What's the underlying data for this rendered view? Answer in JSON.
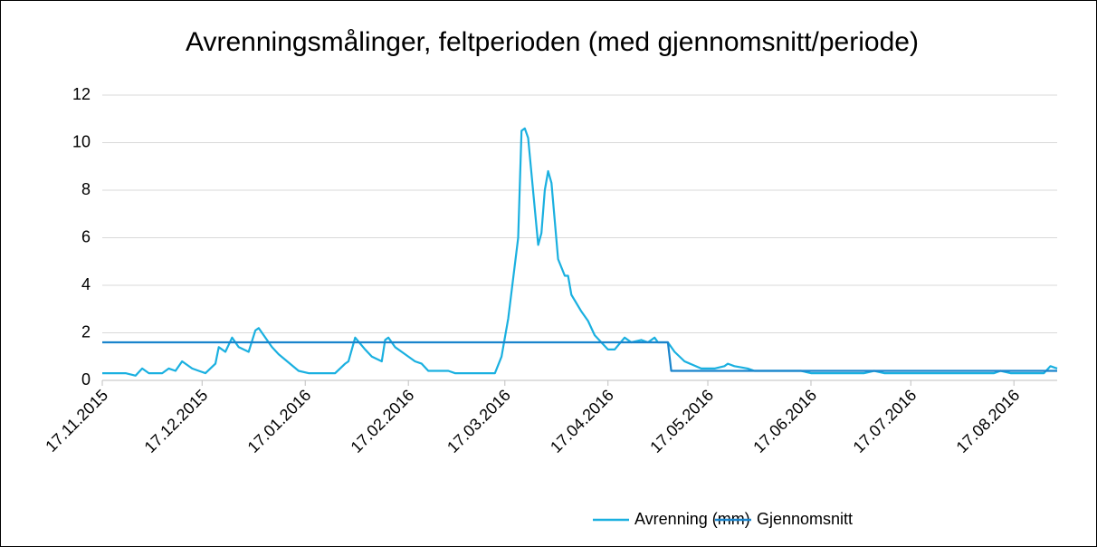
{
  "chart_data": {
    "type": "line",
    "title": "Avrenningsmålinger, feltperioden (med gjennomsnitt/periode)",
    "xlim": [
      "17.11.2015",
      "30.08.2016"
    ],
    "xticks": [
      "17.11.2015",
      "17.12.2015",
      "17.01.2016",
      "17.02.2016",
      "17.03.2016",
      "17.04.2016",
      "17.05.2016",
      "17.06.2016",
      "17.07.2016",
      "17.08.2016"
    ],
    "ylim": [
      0,
      12
    ],
    "yticks": [
      0,
      2,
      4,
      6,
      8,
      10,
      12
    ],
    "grid": true,
    "legend": "bottom",
    "series": [
      {
        "name": "Avrenning (mm)",
        "color": "#1ab0e0",
        "x": [
          "17.11.2015",
          "24.11.2015",
          "27.11.2015",
          "29.11.2015",
          "01.12.2015",
          "05.12.2015",
          "07.12.2015",
          "09.12.2015",
          "11.12.2015",
          "14.12.2015",
          "16.12.2015",
          "18.12.2015",
          "21.12.2015",
          "22.12.2015",
          "24.12.2015",
          "26.12.2015",
          "28.12.2015",
          "31.12.2015",
          "02.01.2016",
          "03.01.2016",
          "07.01.2016",
          "09.01.2016",
          "15.01.2016",
          "18.01.2016",
          "26.01.2016",
          "29.01.2016",
          "30.01.2016",
          "01.02.2016",
          "04.02.2016",
          "06.02.2016",
          "09.02.2016",
          "10.02.2016",
          "11.02.2016",
          "13.02.2016",
          "16.02.2016",
          "19.02.2016",
          "21.02.2016",
          "23.02.2016",
          "29.02.2016",
          "02.03.2016",
          "14.03.2016",
          "16.03.2016",
          "18.03.2016",
          "21.03.2016",
          "22.03.2016",
          "23.03.2016",
          "24.03.2016",
          "27.03.2016",
          "28.03.2016",
          "29.03.2016",
          "30.03.2016",
          "31.03.2016",
          "02.04.2016",
          "04.04.2016",
          "05.04.2016",
          "06.04.2016",
          "09.04.2016",
          "11.04.2016",
          "13.04.2016",
          "17.04.2016",
          "19.04.2016",
          "22.04.2016",
          "24.04.2016",
          "27.04.2016",
          "29.04.2016",
          "01.05.2016",
          "02.05.2016",
          "05.05.2016",
          "07.05.2016",
          "10.05.2016",
          "15.05.2016",
          "19.05.2016",
          "22.05.2016",
          "23.05.2016",
          "25.05.2016",
          "29.05.2016",
          "31.05.2016",
          "14.06.2016",
          "17.06.2016",
          "03.07.2016",
          "06.07.2016",
          "09.07.2016",
          "11.08.2016",
          "13.08.2016",
          "16.08.2016",
          "26.08.2016",
          "28.08.2016",
          "30.08.2016"
        ],
        "values": [
          0.3,
          0.3,
          0.2,
          0.5,
          0.3,
          0.3,
          0.5,
          0.4,
          0.8,
          0.5,
          0.4,
          0.3,
          0.7,
          1.4,
          1.2,
          1.8,
          1.4,
          1.2,
          2.1,
          2.2,
          1.4,
          1.1,
          0.4,
          0.3,
          0.3,
          0.7,
          0.8,
          1.8,
          1.3,
          1.0,
          0.8,
          1.7,
          1.8,
          1.4,
          1.1,
          0.8,
          0.7,
          0.4,
          0.4,
          0.3,
          0.3,
          1.0,
          2.6,
          6.0,
          10.5,
          10.6,
          10.2,
          5.7,
          6.2,
          8.0,
          8.8,
          8.3,
          5.1,
          4.4,
          4.4,
          3.6,
          2.9,
          2.5,
          1.9,
          1.3,
          1.3,
          1.8,
          1.6,
          1.7,
          1.6,
          1.8,
          1.6,
          1.6,
          1.2,
          0.8,
          0.5,
          0.5,
          0.6,
          0.7,
          0.6,
          0.5,
          0.4,
          0.4,
          0.3,
          0.3,
          0.4,
          0.3,
          0.3,
          0.4,
          0.3,
          0.3,
          0.6,
          0.5
        ]
      },
      {
        "name": "Gjennomsnitt",
        "color": "#1a84cc",
        "x": [
          "17.11.2015",
          "05.05.2016",
          "06.05.2016",
          "30.08.2016"
        ],
        "values": [
          1.6,
          1.6,
          0.4,
          0.4
        ]
      }
    ]
  }
}
